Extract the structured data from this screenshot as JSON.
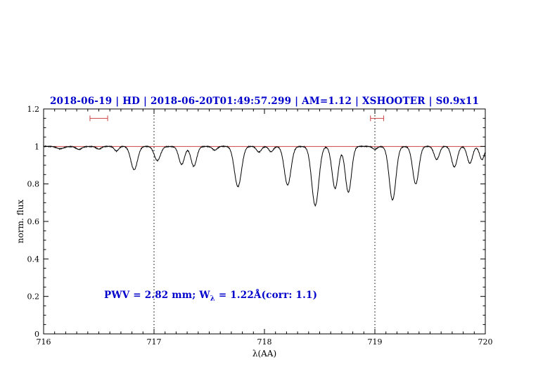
{
  "figure": {
    "title": "2018-06-19 | HD | 2018-06-20T01:49:57.299 | AM=1.12 | XSHOOTER | S0.9x11",
    "annotation": {
      "pre": "PWV = 2.82 mm; W",
      "sub": "λ",
      "post": " = 1.22Å(corr: 1.1)"
    },
    "xlabel": "λ(AA)",
    "ylabel": "norm. flux",
    "colors": {
      "title_text": "#0000cc",
      "annotation_text": "#0000cc",
      "continuum_line": "#cc4444",
      "range_marker": "#cc4444",
      "spectrum_line": "#000000",
      "axis": "#000000",
      "background": "#ffffff"
    }
  },
  "chart_data": {
    "type": "line",
    "title": "2018-06-19 | HD | 2018-06-20T01:49:57.299 | AM=1.12 | XSHOOTER | S0.9x11",
    "xlabel": "λ(AA)",
    "ylabel": "norm. flux",
    "xlim": [
      716,
      720
    ],
    "ylim": [
      0,
      1.2
    ],
    "x_ticks": [
      716,
      717,
      718,
      719,
      720
    ],
    "x_tick_labels": [
      "716",
      "717",
      "718",
      "719",
      "720"
    ],
    "y_ticks": [
      0,
      0.2,
      0.4,
      0.6,
      0.8,
      1,
      1.2
    ],
    "y_tick_labels": [
      "0",
      "0.2",
      "0.4",
      "0.6",
      "0.8",
      "1",
      "1.2"
    ],
    "x_minor_step": 0.1,
    "y_minor_step": 0.05,
    "grid": false,
    "continuum_y": 1.0,
    "dotted_vlines": [
      717,
      719
    ],
    "range_markers": [
      {
        "x1": 716.42,
        "x2": 716.58,
        "y": 1.15
      },
      {
        "x1": 718.96,
        "x2": 719.08,
        "y": 1.15
      }
    ],
    "noise_amplitude": 0.004,
    "absorption_lines": [
      {
        "center": 716.15,
        "depth": 0.012,
        "sigma": 0.03
      },
      {
        "center": 716.32,
        "depth": 0.015,
        "sigma": 0.025
      },
      {
        "center": 716.5,
        "depth": 0.014,
        "sigma": 0.022
      },
      {
        "center": 716.66,
        "depth": 0.025,
        "sigma": 0.02
      },
      {
        "center": 716.82,
        "depth": 0.125,
        "sigma": 0.03
      },
      {
        "center": 717.03,
        "depth": 0.075,
        "sigma": 0.028
      },
      {
        "center": 717.25,
        "depth": 0.095,
        "sigma": 0.026
      },
      {
        "center": 717.36,
        "depth": 0.105,
        "sigma": 0.026
      },
      {
        "center": 717.55,
        "depth": 0.02,
        "sigma": 0.022
      },
      {
        "center": 717.76,
        "depth": 0.215,
        "sigma": 0.032
      },
      {
        "center": 717.95,
        "depth": 0.03,
        "sigma": 0.022
      },
      {
        "center": 718.06,
        "depth": 0.028,
        "sigma": 0.02
      },
      {
        "center": 718.21,
        "depth": 0.205,
        "sigma": 0.03
      },
      {
        "center": 718.46,
        "depth": 0.315,
        "sigma": 0.032
      },
      {
        "center": 718.64,
        "depth": 0.225,
        "sigma": 0.028
      },
      {
        "center": 718.76,
        "depth": 0.245,
        "sigma": 0.028
      },
      {
        "center": 719.0,
        "depth": 0.015,
        "sigma": 0.02
      },
      {
        "center": 719.16,
        "depth": 0.285,
        "sigma": 0.03
      },
      {
        "center": 719.37,
        "depth": 0.2,
        "sigma": 0.028
      },
      {
        "center": 719.56,
        "depth": 0.07,
        "sigma": 0.024
      },
      {
        "center": 719.72,
        "depth": 0.11,
        "sigma": 0.026
      },
      {
        "center": 719.86,
        "depth": 0.09,
        "sigma": 0.024
      },
      {
        "center": 719.97,
        "depth": 0.07,
        "sigma": 0.022
      }
    ]
  }
}
